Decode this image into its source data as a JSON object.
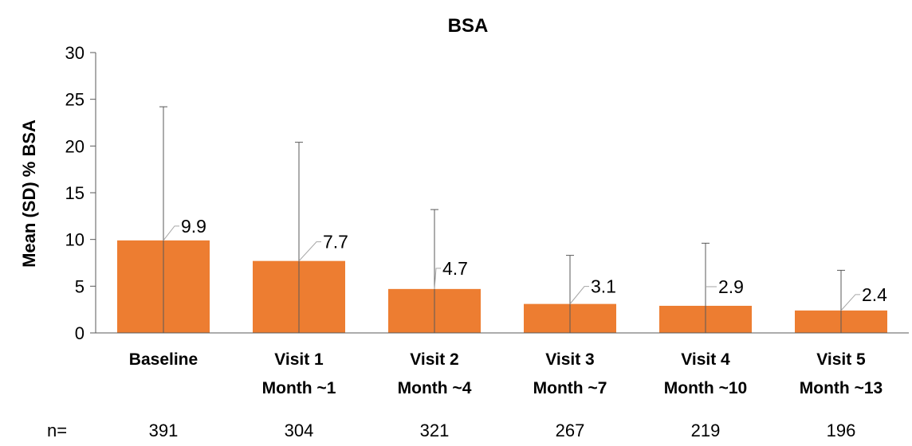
{
  "chart_data": {
    "type": "bar",
    "title": "BSA",
    "ylabel": "Mean (SD) % BSA",
    "xlabel": "",
    "ylim": [
      0,
      30
    ],
    "yticks": [
      0,
      5,
      10,
      15,
      20,
      25,
      30
    ],
    "grid": false,
    "legend": "none",
    "categories": [
      [
        "Baseline"
      ],
      [
        "Visit 1",
        "Month ~1"
      ],
      [
        "Visit 2",
        "Month ~4"
      ],
      [
        "Visit 3",
        "Month ~7"
      ],
      [
        "Visit 4",
        "Month ~10"
      ],
      [
        "Visit 5",
        "Month ~13"
      ]
    ],
    "values": [
      9.9,
      7.7,
      4.7,
      3.1,
      2.9,
      2.4
    ],
    "value_labels": [
      "9.9",
      "7.7",
      "4.7",
      "3.1",
      "2.9",
      "2.4"
    ],
    "error_upper": [
      24.2,
      20.4,
      13.2,
      8.3,
      9.6,
      6.7
    ],
    "n_prefix": "n=",
    "n_values": [
      "391",
      "304",
      "321",
      "267",
      "219",
      "196"
    ],
    "bar_color": "#ED7D31",
    "error_color": "#595959",
    "leader_color": "#A6A6A6"
  }
}
